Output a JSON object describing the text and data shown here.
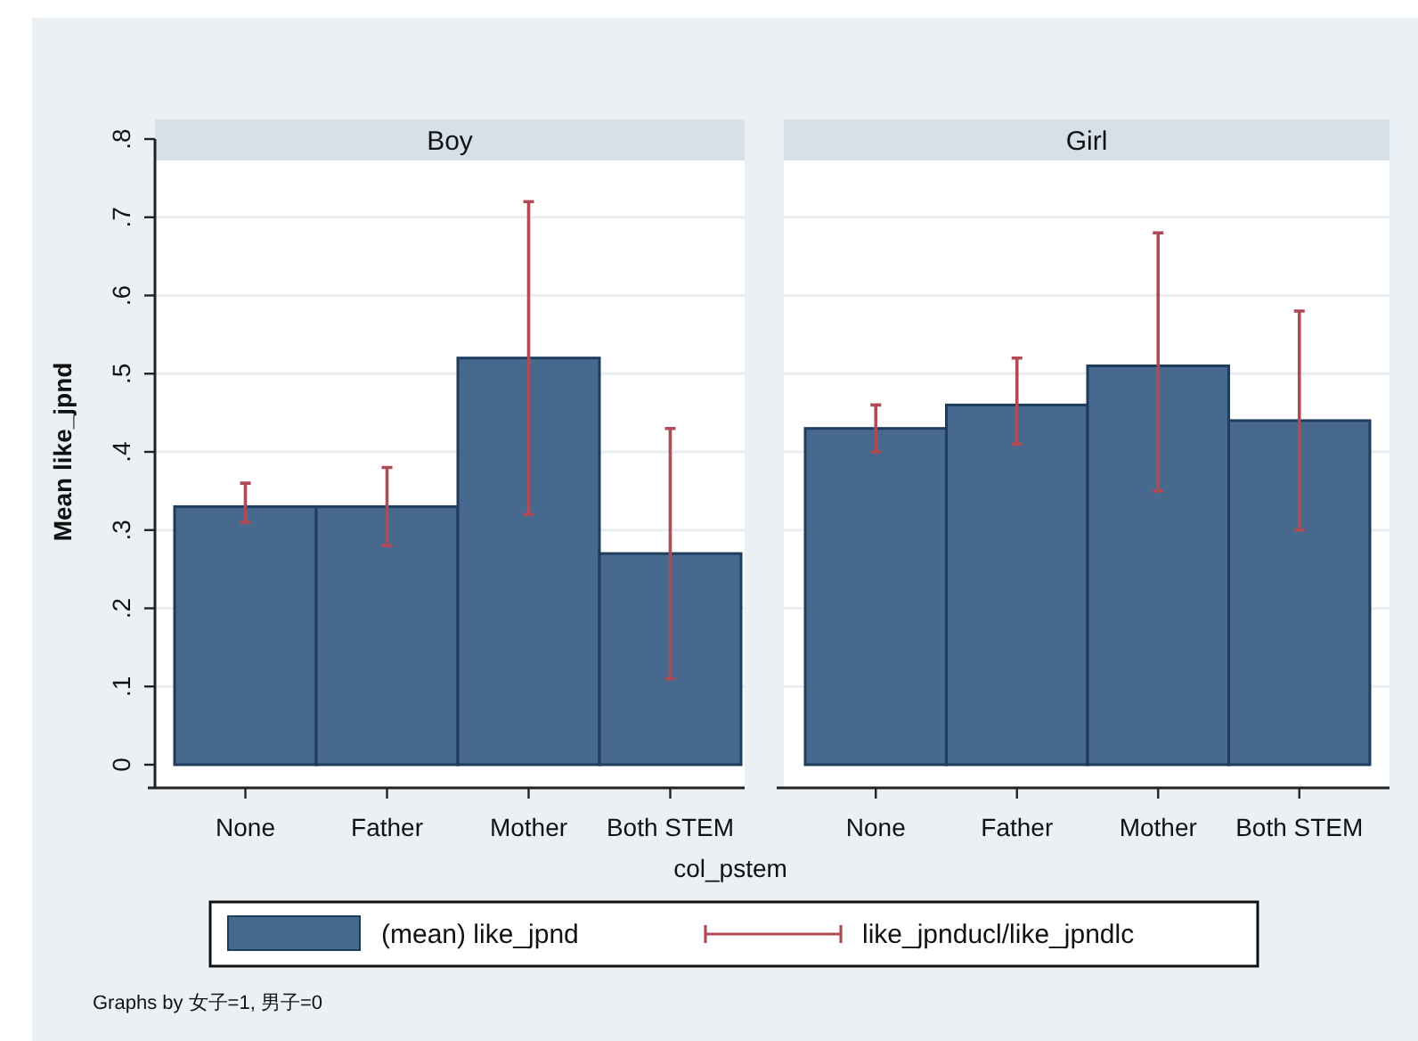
{
  "chart_data": [
    {
      "type": "bar",
      "title": "Boy",
      "xlabel": "col_pstem",
      "ylabel": "Mean like_jpnd",
      "categories": [
        "None",
        "Father",
        "Mother",
        "Both STEM"
      ],
      "series": [
        {
          "name": "(mean) like_jpnd",
          "color": "#46698d",
          "values": [
            0.33,
            0.33,
            0.52,
            0.27
          ],
          "errors": [
            [
              0.31,
              0.36
            ],
            [
              0.28,
              0.38
            ],
            [
              0.32,
              0.72
            ],
            [
              0.11,
              0.43
            ]
          ]
        }
      ],
      "ylim": [
        0,
        0.8
      ],
      "yticks": [
        0,
        {
          "value": 0.1,
          "label": ".1"
        },
        {
          "value": 0.2,
          "label": ".2"
        },
        {
          "value": 0.3,
          "label": ".3"
        },
        {
          "value": 0.4,
          "label": ".4"
        },
        {
          "value": 0.5,
          "label": ".5"
        },
        {
          "value": 0.6,
          "label": ".6"
        },
        {
          "value": 0.7,
          "label": ".7"
        },
        {
          "value": 0.8,
          "label": ".8"
        }
      ],
      "grid": "y",
      "legend": "bottom",
      "annotations": [
        "like_jpnducl/like_jpndlc",
        "Graphs by 女子=1, 男子=0"
      ]
    },
    {
      "type": "bar",
      "title": "Girl",
      "categories": [
        "None",
        "Father",
        "Mother",
        "Both STEM"
      ],
      "series": [
        {
          "color": "#46698d",
          "values": [
            0.43,
            0.46,
            0.51,
            0.44
          ],
          "errors": [
            [
              0.4,
              0.46
            ],
            [
              0.41,
              0.52
            ],
            [
              0.35,
              0.68
            ],
            [
              0.3,
              0.58
            ]
          ]
        }
      ],
      "ylim": [
        0,
        0.8
      ],
      "yticks": [
        0,
        0.1,
        0.2,
        0.3,
        0.4,
        0.5,
        0.6,
        0.7,
        0.8
      ],
      "grid": "y",
      "tick_labels": "x"
    }
  ]
}
